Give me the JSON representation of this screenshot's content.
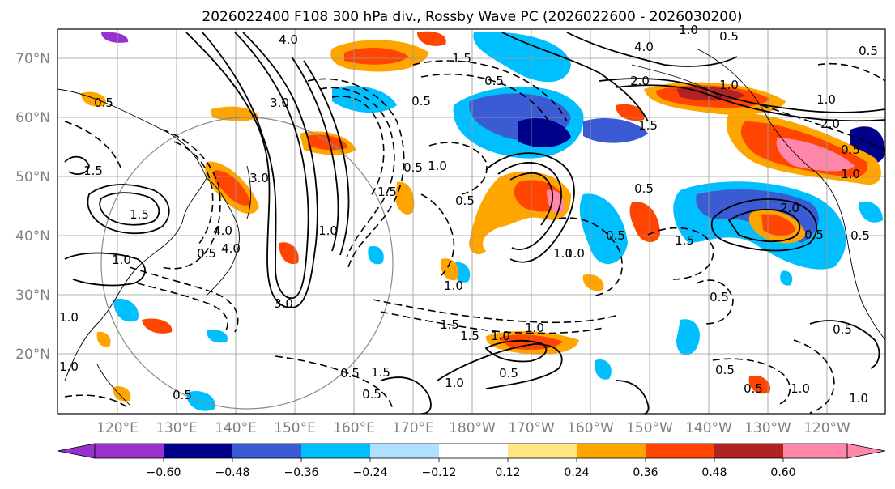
{
  "title": "2026022400 F108 300 hPa div., Rossby Wave PC (2026022600 - 2026030200)",
  "map": {
    "lat_labels": [
      "70°N",
      "60°N",
      "50°N",
      "40°N",
      "30°N",
      "20°N"
    ],
    "lon_labels": [
      "120°E",
      "130°E",
      "140°E",
      "150°E",
      "160°E",
      "170°E",
      "180°W",
      "170°W",
      "160°W",
      "150°W",
      "140°W",
      "130°W",
      "120°W"
    ],
    "lat_range": [
      10,
      75
    ],
    "lon_range": [
      110,
      250
    ],
    "grid": true
  },
  "colorbar": {
    "colors": [
      "#9932cc",
      "#00008b",
      "#3a5bd3",
      "#00bfff",
      "#b0e0ff",
      "#ffffff",
      "#ffe680",
      "#ffa500",
      "#ff4500",
      "#b22222",
      "#ff88aa"
    ],
    "tick_labels": [
      "−0.60",
      "−0.48",
      "−0.36",
      "−0.24",
      "−0.12",
      "0.12",
      "0.24",
      "0.36",
      "0.48",
      "0.60"
    ],
    "extend": "both"
  },
  "contour_labels": [
    "4.0",
    "0.5",
    "1.5",
    "0.5",
    "3.0",
    "1.5",
    "0.5",
    "3.0",
    "4.0",
    "2.0",
    "1.5",
    "1.0",
    "0.5",
    "1.0",
    "0.5",
    "1.5",
    "0.5",
    "0.5",
    "4.0",
    "3.0",
    "0.5",
    "1.0",
    "1.0",
    "1.5",
    "0.5",
    "1.0",
    "0.5",
    "1.5",
    "1.0",
    "0.5",
    "1.0",
    "0.5",
    "0.5",
    "1.0",
    "0.5",
    "0.5",
    "1.0",
    "2.0",
    "1.0",
    "0.5",
    "1.0",
    "1.0",
    "0.5",
    "0.5",
    "1.0",
    "0.5",
    "1.0"
  ],
  "contour_label_short": [
    "1.5",
    "2.0",
    "0.5",
    "1.0",
    "1.5",
    "1.0",
    "0.5",
    "1.0",
    "4.0",
    "1.5"
  ]
}
